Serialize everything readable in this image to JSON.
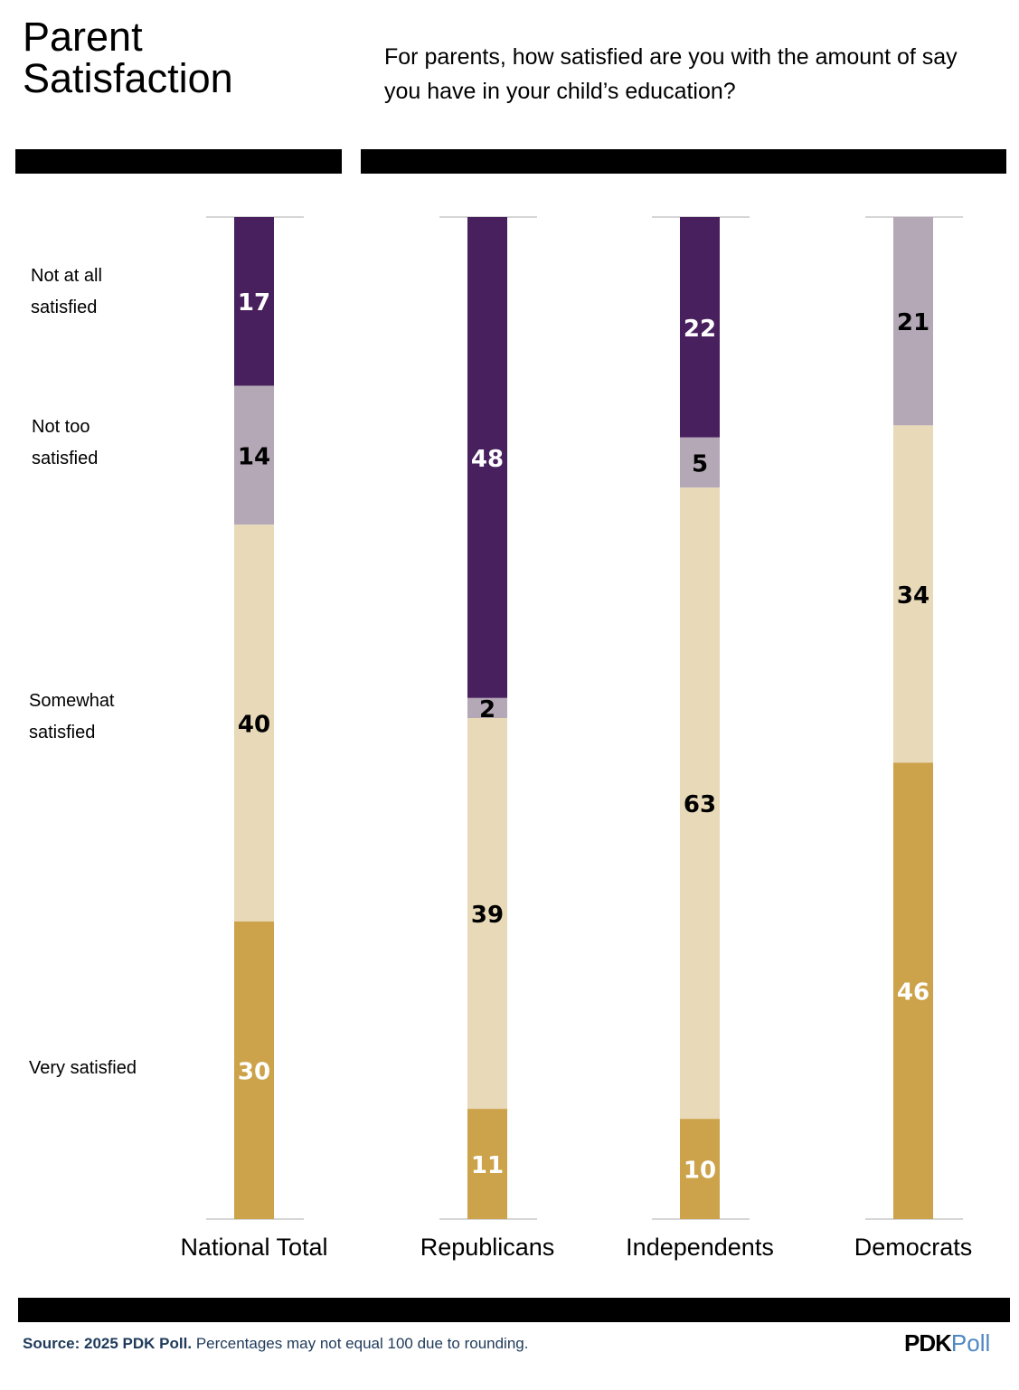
{
  "header": {
    "title": "Parent Satisfaction",
    "question": "For parents, how satisfied are you with the amount of say you have in your child’s education?"
  },
  "colors": {
    "not_at_all": "#49205e",
    "not_too": "#b4a8b6",
    "somewhat": "#e8d9b8",
    "very": "#cca24a"
  },
  "chart_data": {
    "type": "bar",
    "stacked": true,
    "orientation": "vertical",
    "categories": [
      "National Total",
      "Republicans",
      "Independents",
      "Democrats"
    ],
    "series": [
      {
        "name": "Not at all satisfied",
        "values": [
          17,
          48,
          22,
          0
        ]
      },
      {
        "name": "Not too satisfied",
        "values": [
          14,
          2,
          5,
          21
        ]
      },
      {
        "name": "Somewhat satisfied",
        "values": [
          40,
          39,
          63,
          34
        ]
      },
      {
        "name": "Very satisfied",
        "values": [
          30,
          11,
          10,
          46
        ]
      }
    ],
    "legend_labels": [
      "Not at all satisfied",
      "Not too satisfied",
      "Somewhat satisfied",
      "Very satisfied"
    ],
    "ylim": [
      0,
      100
    ]
  },
  "footer": {
    "source_bold": "Source: 2025 PDK Poll.",
    "source_note": "Percentages may not equal 100 due to rounding.",
    "logo_pdk": "PDK",
    "logo_poll": "Poll"
  }
}
